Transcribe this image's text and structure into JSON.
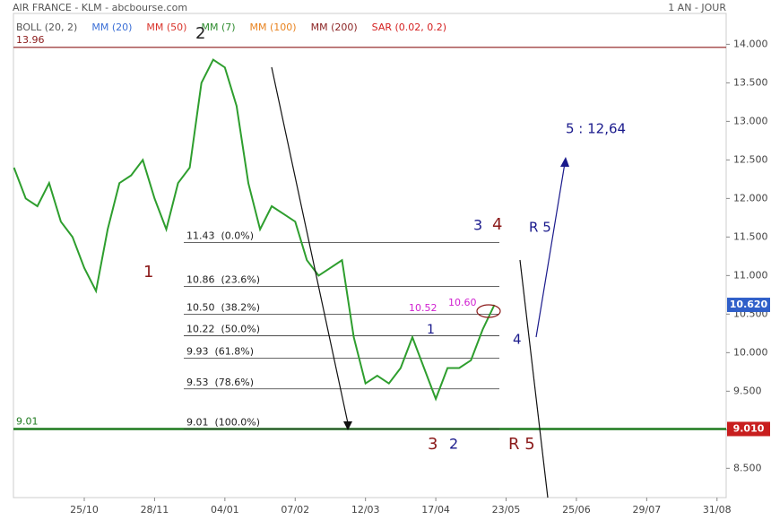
{
  "chart_data": {
    "type": "line",
    "title": "AIR FRANCE - KLM - abcbourse.com",
    "period": "1 AN - JOUR",
    "indicators": [
      {
        "name": "BOLL (20, 2)",
        "color": "#555555"
      },
      {
        "name": "MM (20)",
        "color": "#3b6fd6"
      },
      {
        "name": "MM (50)",
        "color": "#d9342b"
      },
      {
        "name": "MM (7)",
        "color": "#2e8b2e"
      },
      {
        "name": "MM (100)",
        "color": "#e8821e"
      },
      {
        "name": "MM (200)",
        "color": "#8b2323"
      },
      {
        "name": "SAR (0.02, 0.2)",
        "color": "#d41e1e"
      }
    ],
    "categories": [
      null,
      null,
      null,
      null,
      null,
      null,
      "25/10",
      null,
      null,
      null,
      null,
      null,
      "28/11",
      null,
      null,
      null,
      null,
      null,
      "04/01",
      null,
      null,
      null,
      null,
      null,
      "07/02",
      null,
      null,
      null,
      null,
      null,
      "12/03",
      null,
      null,
      null,
      null,
      null,
      "17/04",
      null,
      null,
      null,
      null,
      null,
      "23/05",
      null,
      null,
      null,
      null,
      null,
      "25/06",
      null,
      null,
      null,
      null,
      null,
      "29/07",
      null,
      null,
      null,
      null,
      null,
      "31/08"
    ],
    "series": [
      {
        "name": "AIR FRANCE - KLM",
        "color": "#2e9e2e",
        "values": [
          12.4,
          12.0,
          11.9,
          12.2,
          11.7,
          11.5,
          11.1,
          10.8,
          11.6,
          12.2,
          12.3,
          12.5,
          12.0,
          11.6,
          12.2,
          12.4,
          13.5,
          13.8,
          13.7,
          13.2,
          12.2,
          11.6,
          11.9,
          11.8,
          11.7,
          11.2,
          11.0,
          11.1,
          11.2,
          10.2,
          9.6,
          9.7,
          9.6,
          9.8,
          10.2,
          9.8,
          9.4,
          9.8,
          9.8,
          9.9,
          10.3,
          10.62,
          null,
          null,
          null,
          null,
          null,
          null,
          null,
          null,
          null,
          null,
          null,
          null,
          null,
          null,
          null,
          null,
          null,
          null,
          null
        ]
      }
    ],
    "ylim": [
      8.12,
      14.4
    ],
    "yticks": [
      {
        "value": 8.5,
        "label": "8.500"
      },
      {
        "value": 9,
        "label": "9.000"
      },
      {
        "value": 9.5,
        "label": "9.500"
      },
      {
        "value": 10,
        "label": "10.000"
      },
      {
        "value": 10.5,
        "label": "10.500"
      },
      {
        "value": 11,
        "label": "11.000"
      },
      {
        "value": 11.5,
        "label": "11.500"
      },
      {
        "value": 12,
        "label": "12.000"
      },
      {
        "value": 12.5,
        "label": "12.500"
      },
      {
        "value": 13,
        "label": "13.000"
      },
      {
        "value": 13.5,
        "label": "13.500"
      },
      {
        "value": 14,
        "label": "14.000"
      }
    ],
    "fibonacci": [
      {
        "value": 11.43,
        "label": "11.43  (0.0%)"
      },
      {
        "value": 10.86,
        "label": "10.86  (23.6%)"
      },
      {
        "value": 10.5,
        "label": "10.50  (38.2%)"
      },
      {
        "value": 10.22,
        "label": "10.22  (50.0%)"
      },
      {
        "value": 9.93,
        "label": "9.93  (61.8%)"
      },
      {
        "value": 9.53,
        "label": "9.53  (78.6%)"
      },
      {
        "value": 9.01,
        "label": "9.01  (100.0%)"
      }
    ],
    "levels": [
      {
        "value": 13.96,
        "label": "13.96",
        "color": "#8b1a1a"
      },
      {
        "value": 9.01,
        "label": "9.01",
        "color": "#1e7a1e"
      }
    ],
    "price_tags": [
      {
        "value": 10.62,
        "label": "10.620",
        "color": "#2f5fc9"
      },
      {
        "value": 9.01,
        "label": "9.010",
        "color": "#c81e1e"
      }
    ],
    "annotations": {
      "wave_2_top": "2",
      "wave_1": "1",
      "wave_3_top": "3",
      "wave_4_top": "4",
      "r5_top": "R 5",
      "target": "5 : 12,64",
      "wave_1_low": "1",
      "wave_4": "4",
      "wave_3_low": "3",
      "wave_2_low": "2",
      "r5_bottom": "R 5",
      "level_a": "10.52",
      "level_b": "10.60"
    }
  }
}
